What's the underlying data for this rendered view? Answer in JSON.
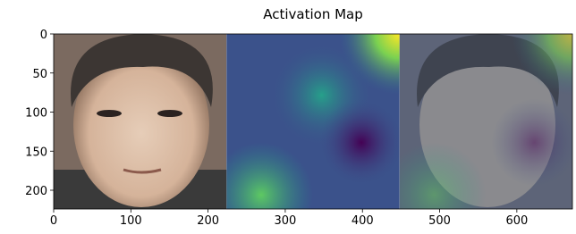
{
  "chart_data": {
    "type": "image",
    "title": "Activation Map",
    "xlim": [
      0,
      672
    ],
    "ylim": [
      224,
      0
    ],
    "xticks": [
      0,
      100,
      200,
      300,
      400,
      500,
      600
    ],
    "yticks": [
      0,
      50,
      100,
      150,
      200
    ]
  }
}
